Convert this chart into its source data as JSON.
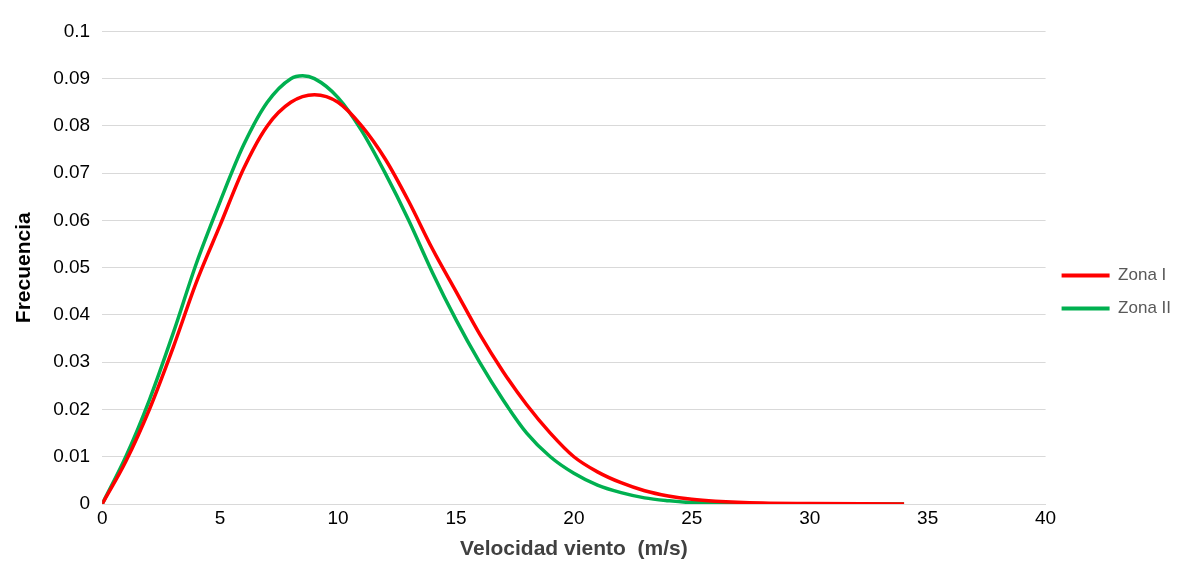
{
  "chart_data": {
    "type": "line",
    "xlabel": "Velocidad viento  (m/s)",
    "ylabel": "Frecuencia",
    "xlim": [
      0,
      40
    ],
    "xticks": [
      0,
      5,
      10,
      15,
      20,
      25,
      30,
      35,
      40
    ],
    "ylim": [
      0,
      0.1
    ],
    "yticks": [
      0,
      0.01,
      0.02,
      0.03,
      0.04,
      0.05,
      0.06,
      0.07,
      0.08,
      0.09,
      0.1
    ],
    "grid": "y",
    "legend": "right",
    "marker": "none",
    "line_style": "solid",
    "series": [
      {
        "name": "Zona I",
        "color": "#ff0000",
        "x": [
          0,
          1,
          2,
          3,
          4,
          5,
          6,
          7,
          8,
          9,
          10,
          11,
          12,
          13,
          14,
          15,
          16,
          17,
          18,
          19,
          20,
          21,
          22,
          23,
          24,
          25,
          26,
          28,
          30,
          34
        ],
        "values": [
          0,
          0.009,
          0.02,
          0.033,
          0.047,
          0.059,
          0.071,
          0.08,
          0.085,
          0.0866,
          0.085,
          0.08,
          0.073,
          0.064,
          0.054,
          0.045,
          0.036,
          0.028,
          0.021,
          0.015,
          0.01,
          0.0068,
          0.0045,
          0.0028,
          0.0017,
          0.001,
          0.0006,
          0.0002,
          0.0001,
          0
        ]
      },
      {
        "name": "Zona II",
        "color": "#00b050",
        "x": [
          0,
          1,
          2,
          3,
          4,
          5,
          6,
          7,
          8,
          8.5,
          9,
          10,
          11,
          12,
          13,
          14,
          15,
          16,
          17,
          18,
          19,
          20,
          21,
          22,
          23,
          24,
          25,
          30,
          34
        ],
        "values": [
          0,
          0.01,
          0.022,
          0.036,
          0.051,
          0.064,
          0.076,
          0.085,
          0.09,
          0.0906,
          0.09,
          0.086,
          0.079,
          0.07,
          0.06,
          0.049,
          0.039,
          0.03,
          0.022,
          0.015,
          0.01,
          0.0065,
          0.004,
          0.0024,
          0.0013,
          0.0007,
          0.0003,
          0,
          0
        ]
      }
    ]
  }
}
